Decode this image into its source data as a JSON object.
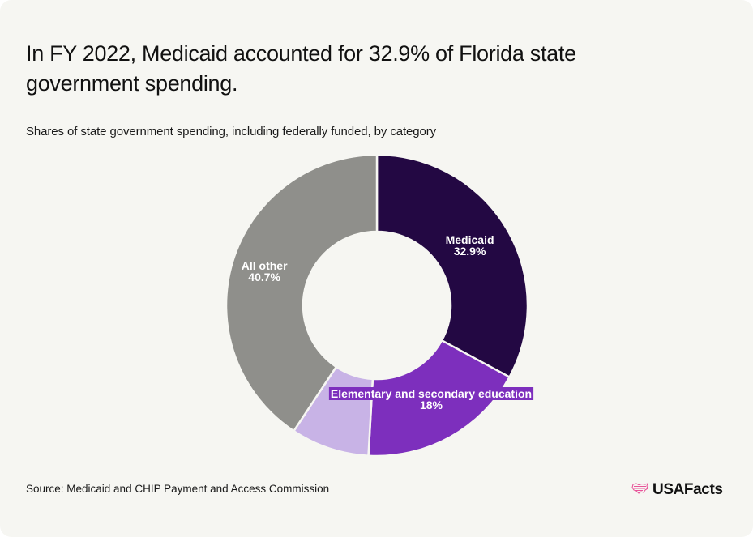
{
  "header": {
    "title": "In FY 2022, Medicaid accounted for 32.9% of Florida state government spending.",
    "subtitle": "Shares of state government spending, including federally funded, by category"
  },
  "footer": {
    "source": "Source: Medicaid and CHIP Payment and Access Commission",
    "logo_text": "USAFacts",
    "logo_icon": "us-map-flag-icon"
  },
  "colors": {
    "background": "#f6f6f2",
    "logo_accent": "#e8559a"
  },
  "chart_data": {
    "type": "pie",
    "variant": "donut",
    "title": "In FY 2022, Medicaid accounted for 32.9% of Florida state government spending.",
    "subtitle": "Shares of state government spending, including federally funded, by category",
    "unit": "%",
    "start": "top, clockwise",
    "slices": [
      {
        "name": "Medicaid",
        "value": 32.9,
        "label": "Medicaid",
        "value_label": "32.9%",
        "color": "#230843",
        "labeled": true
      },
      {
        "name": "Elementary and secondary education",
        "value": 18.0,
        "label": "Elementary and secondary education",
        "value_label": "18%",
        "color": "#7d2fbd",
        "labeled": true
      },
      {
        "name": "Unlabeled",
        "value": 8.4,
        "label": "",
        "value_label": "",
        "color": "#c8b3e6",
        "labeled": false
      },
      {
        "name": "All other",
        "value": 40.7,
        "label": "All other",
        "value_label": "40.7%",
        "color": "#8f8f8b",
        "labeled": true
      }
    ]
  }
}
